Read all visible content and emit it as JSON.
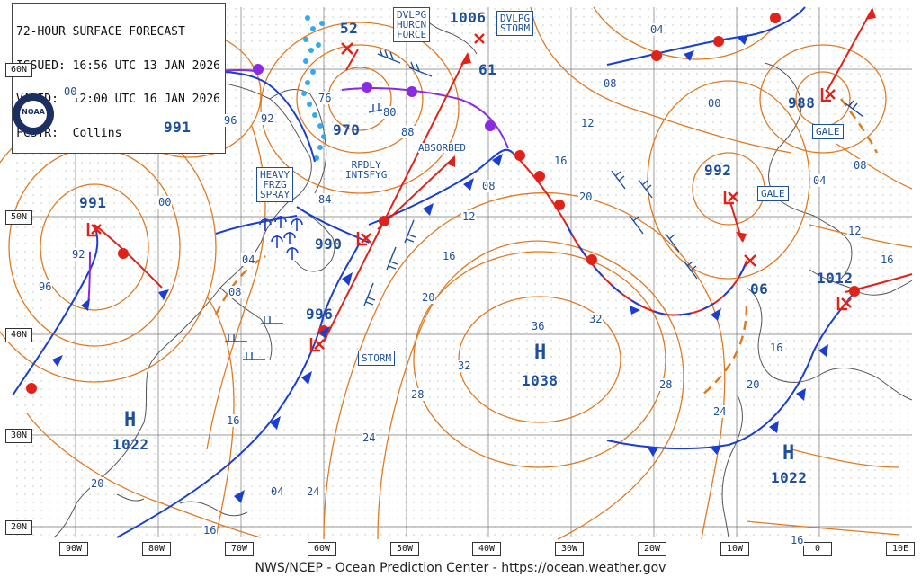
{
  "header": {
    "line1": "72-HOUR SURFACE FORECAST",
    "line2": "ISSUED: 16:56 UTC 13 JAN 2026",
    "line3": "VALID:  12:00 UTC 16 JAN 2026",
    "line4": "FCSTR:  Collins"
  },
  "footer": "NWS/NCEP - Ocean Prediction Center - https://ocean.weather.gov",
  "logo_text": "NOAA",
  "lat_labels": [
    "60N",
    "50N",
    "40N",
    "30N",
    "20N"
  ],
  "lon_labels": [
    "90W",
    "80W",
    "70W",
    "60W",
    "50W",
    "40W",
    "30W",
    "20W",
    "10W",
    "0",
    "10E"
  ],
  "pressure_centers": [
    {
      "id": "l991nw",
      "value": "991"
    },
    {
      "id": "l991w",
      "value": "991"
    },
    {
      "id": "l970",
      "value": "970"
    },
    {
      "id": "l990",
      "value": "990"
    },
    {
      "id": "l996",
      "value": "996"
    },
    {
      "id": "l1006",
      "value": "1006"
    },
    {
      "id": "l992",
      "value": "992"
    },
    {
      "id": "l988",
      "value": "988"
    },
    {
      "id": "l1012",
      "value": "1012"
    },
    {
      "id": "l52",
      "value": "52"
    },
    {
      "id": "l61",
      "value": "61"
    },
    {
      "id": "l06",
      "value": "06"
    }
  ],
  "highs": [
    {
      "id": "h1038",
      "letter": "H",
      "value": "1038"
    },
    {
      "id": "h1022w",
      "letter": "H",
      "value": "1022"
    },
    {
      "id": "h1022e",
      "letter": "H",
      "value": "1022"
    }
  ],
  "isobar_labels": [
    "04",
    "08",
    "00",
    "96",
    "92",
    "76",
    "80",
    "88",
    "84",
    "04",
    "08",
    "92",
    "96",
    "00",
    "12",
    "16",
    "20",
    "12",
    "16",
    "08",
    "16",
    "20",
    "24",
    "28",
    "32",
    "36",
    "32",
    "28",
    "24",
    "20",
    "16",
    "20",
    "24",
    "16",
    "16",
    "08",
    "04",
    "12",
    "16",
    "00",
    "04"
  ],
  "boxes": {
    "dvlpg_hurcn": "DVLPG\nHURCN\nFORCE",
    "dvlpg_storm": "DVLPG\nSTORM",
    "heavy": "HEAVY\nFRZG\nSPRAY",
    "storm": "STORM",
    "gale1": "GALE",
    "gale2": "GALE"
  },
  "annotations": {
    "absorbed": "ABSORBED",
    "rpdly": "RPDLY\nINTSFYG"
  },
  "colors": {
    "isobar": "#e07a22",
    "front_cold": "#1a3fd0",
    "front_warm": "#e0231a",
    "occluded": "#8a2be2",
    "label": "#1d4f9c",
    "coast": "#555555",
    "ice": "#33aaee"
  }
}
